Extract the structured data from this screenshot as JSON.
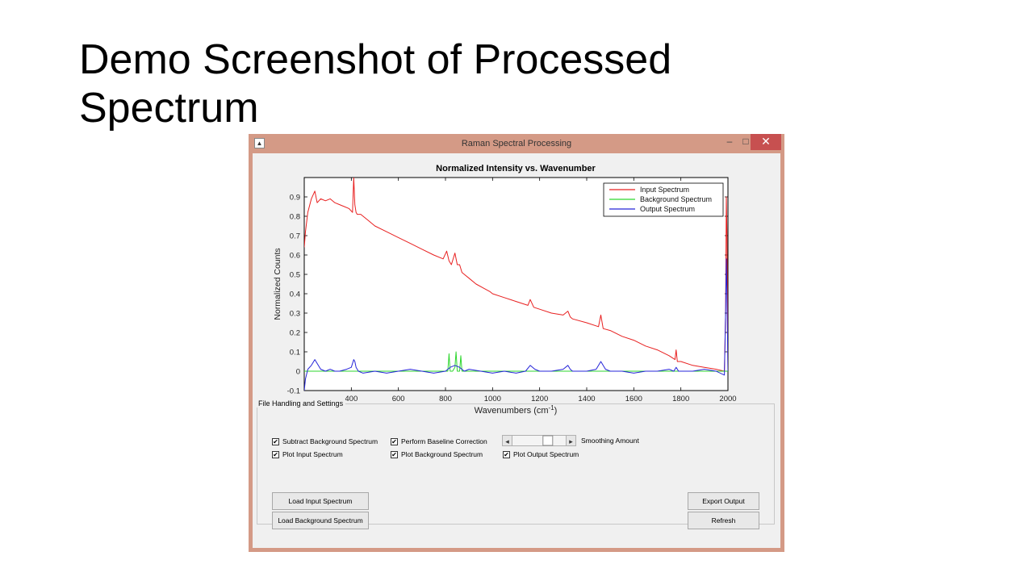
{
  "slide": {
    "title": "Demo Screenshot of Processed\nSpectrum"
  },
  "window": {
    "title": "Raman Spectral Processing",
    "minimize_glyph": "–",
    "maximize_glyph": "□",
    "close_glyph": "✕",
    "app_icon": "matlab-figure-icon"
  },
  "chart_data": {
    "type": "line",
    "title": "Normalized Intensity vs. Wavenumber",
    "xlabel": "Wavenumbers (cm",
    "xlabel_sup": "-1",
    "xlabel_close": ")",
    "ylabel": "Normalized Counts",
    "xlim": [
      200,
      2000
    ],
    "ylim": [
      -0.1,
      1.0
    ],
    "xticks": [
      400,
      600,
      800,
      1000,
      1200,
      1400,
      1600,
      1800,
      2000
    ],
    "yticks": [
      -0.1,
      0,
      0.1,
      0.2,
      0.3,
      0.4,
      0.5,
      0.6,
      0.7,
      0.8,
      0.9
    ],
    "ytick_labels": [
      "-0.1",
      "0",
      "0.1",
      "0.2",
      "0.3",
      "0.4",
      "0.5",
      "0.6",
      "0.7",
      "0.8",
      "0.9"
    ],
    "legend_position": "top-right",
    "series": [
      {
        "name": "Input Spectrum",
        "color": "#e82020",
        "x": [
          200,
          205,
          215,
          230,
          245,
          255,
          270,
          290,
          310,
          330,
          350,
          370,
          390,
          405,
          410,
          415,
          420,
          425,
          440,
          470,
          500,
          550,
          600,
          650,
          700,
          750,
          790,
          805,
          815,
          825,
          840,
          850,
          860,
          870,
          880,
          900,
          930,
          960,
          990,
          1000,
          1050,
          1100,
          1150,
          1160,
          1175,
          1200,
          1250,
          1300,
          1320,
          1330,
          1340,
          1400,
          1450,
          1460,
          1470,
          1500,
          1550,
          1600,
          1650,
          1700,
          1750,
          1775,
          1780,
          1785,
          1800,
          1850,
          1900,
          1950,
          1985,
          1990,
          1993,
          1996,
          2000
        ],
        "values": [
          0.64,
          0.72,
          0.82,
          0.89,
          0.93,
          0.87,
          0.89,
          0.88,
          0.89,
          0.87,
          0.86,
          0.85,
          0.84,
          0.82,
          1.0,
          0.86,
          0.82,
          0.81,
          0.81,
          0.78,
          0.75,
          0.72,
          0.69,
          0.66,
          0.63,
          0.6,
          0.58,
          0.62,
          0.57,
          0.55,
          0.61,
          0.55,
          0.55,
          0.51,
          0.5,
          0.48,
          0.45,
          0.43,
          0.41,
          0.4,
          0.38,
          0.36,
          0.34,
          0.37,
          0.33,
          0.32,
          0.3,
          0.29,
          0.31,
          0.28,
          0.27,
          0.25,
          0.23,
          0.29,
          0.22,
          0.21,
          0.18,
          0.16,
          0.13,
          0.11,
          0.08,
          0.06,
          0.11,
          0.05,
          0.05,
          0.03,
          0.02,
          0.01,
          0.0,
          0.3,
          0.9,
          0.7,
          0.0
        ]
      },
      {
        "name": "Background Spectrum",
        "color": "#2ed62e",
        "x": [
          200,
          780,
          800,
          810,
          815,
          820,
          830,
          840,
          845,
          850,
          860,
          865,
          870,
          880,
          900,
          2000
        ],
        "values": [
          0.0,
          0.0,
          0.0,
          0.0,
          0.09,
          0.0,
          0.0,
          0.02,
          0.1,
          0.0,
          0.0,
          0.08,
          0.0,
          0.0,
          0.0,
          0.0
        ]
      },
      {
        "name": "Output Spectrum",
        "color": "#2424d8",
        "x": [
          200,
          205,
          215,
          230,
          245,
          255,
          270,
          290,
          310,
          330,
          350,
          380,
          400,
          410,
          415,
          420,
          430,
          450,
          500,
          550,
          600,
          650,
          700,
          750,
          800,
          820,
          840,
          860,
          880,
          900,
          950,
          1000,
          1050,
          1100,
          1140,
          1160,
          1180,
          1200,
          1250,
          1300,
          1320,
          1330,
          1340,
          1400,
          1440,
          1460,
          1480,
          1500,
          1550,
          1600,
          1650,
          1700,
          1750,
          1770,
          1780,
          1790,
          1800,
          1850,
          1900,
          1950,
          1985,
          1990,
          1993,
          1996,
          2000
        ],
        "values": [
          -0.1,
          -0.04,
          0.01,
          0.03,
          0.06,
          0.04,
          0.01,
          0.0,
          0.01,
          0.0,
          0.0,
          0.01,
          0.02,
          0.06,
          0.05,
          0.02,
          0.0,
          -0.01,
          0.0,
          -0.01,
          0.0,
          0.01,
          0.0,
          -0.01,
          0.0,
          0.02,
          0.03,
          0.02,
          0.0,
          0.01,
          0.0,
          -0.01,
          0.0,
          -0.01,
          0.0,
          0.03,
          0.01,
          0.0,
          0.0,
          0.01,
          0.03,
          0.01,
          0.0,
          0.0,
          0.01,
          0.05,
          0.01,
          0.0,
          0.0,
          -0.01,
          0.0,
          0.0,
          0.01,
          0.0,
          0.02,
          0.0,
          0.0,
          0.0,
          0.01,
          0.0,
          -0.02,
          0.3,
          0.58,
          0.4,
          0.0
        ]
      }
    ]
  },
  "panel": {
    "title": "File Handling and Settings",
    "checkboxes": [
      {
        "label": "Subtract Background Spectrum",
        "checked": true,
        "mark": "✔"
      },
      {
        "label": "Perform Baseline Correction",
        "checked": true,
        "mark": "✔"
      },
      {
        "label": "Plot Input Spectrum",
        "checked": true,
        "mark": "✔"
      },
      {
        "label": "Plot Background Spectrum",
        "checked": true,
        "mark": "✔"
      },
      {
        "label": "Plot Output Spectrum",
        "checked": true,
        "mark": "✔"
      }
    ],
    "slider": {
      "label": "Smoothing Amount",
      "left_arrow": "◂",
      "right_arrow": "▸",
      "position": 0.7
    },
    "buttons": {
      "load_input": "Load Input Spectrum",
      "load_background": "Load Background Spectrum",
      "export_output": "Export Output",
      "refresh": "Refresh"
    }
  }
}
